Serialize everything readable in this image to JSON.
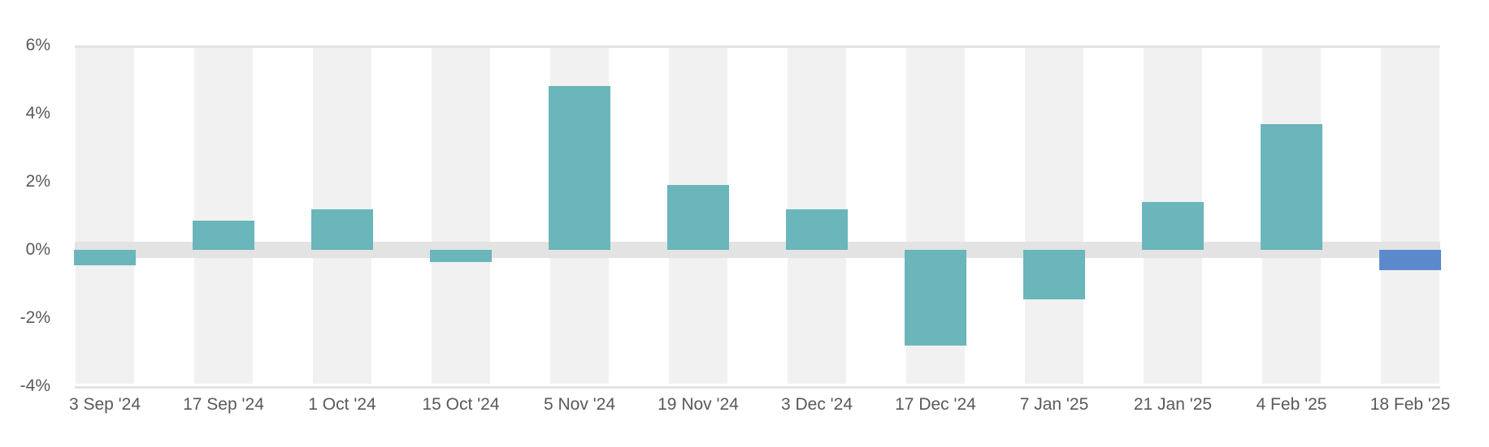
{
  "chart_data": {
    "type": "bar",
    "title": "",
    "xlabel": "",
    "ylabel": "",
    "unit": "%",
    "categories": [
      "3 Sep '24",
      "17 Sep '24",
      "1 Oct '24",
      "15 Oct '24",
      "5 Nov '24",
      "19 Nov '24",
      "3 Dec '24",
      "17 Dec '24",
      "7 Jan '25",
      "21 Jan '25",
      "4 Feb '25",
      "18 Feb '25"
    ],
    "values": [
      -0.45,
      0.85,
      1.2,
      -0.35,
      4.8,
      1.9,
      1.2,
      -2.8,
      -1.45,
      1.4,
      3.7,
      -0.6
    ],
    "highlighted_category": "18 Feb '25",
    "highlight_index": 11,
    "y_ticks": [
      6,
      4,
      2,
      0,
      -2,
      -4
    ],
    "y_tick_labels": [
      "6%",
      "4%",
      "2%",
      "0%",
      "-2%",
      "-4%"
    ],
    "ylim": [
      -4,
      6
    ],
    "legend": "none",
    "grid": "zero-band-and-top-bottom-borders",
    "background_style": "light-gray band behind every category",
    "colors": {
      "bar_default": "#6ab6ba",
      "bar_highlight": "#5b8acc",
      "category_band": "#f1f1f1",
      "zero_band": "#e3e3e3",
      "plot_border": "#e3e3e3",
      "axis_text": "#58595b",
      "background": "#ffffff"
    }
  }
}
